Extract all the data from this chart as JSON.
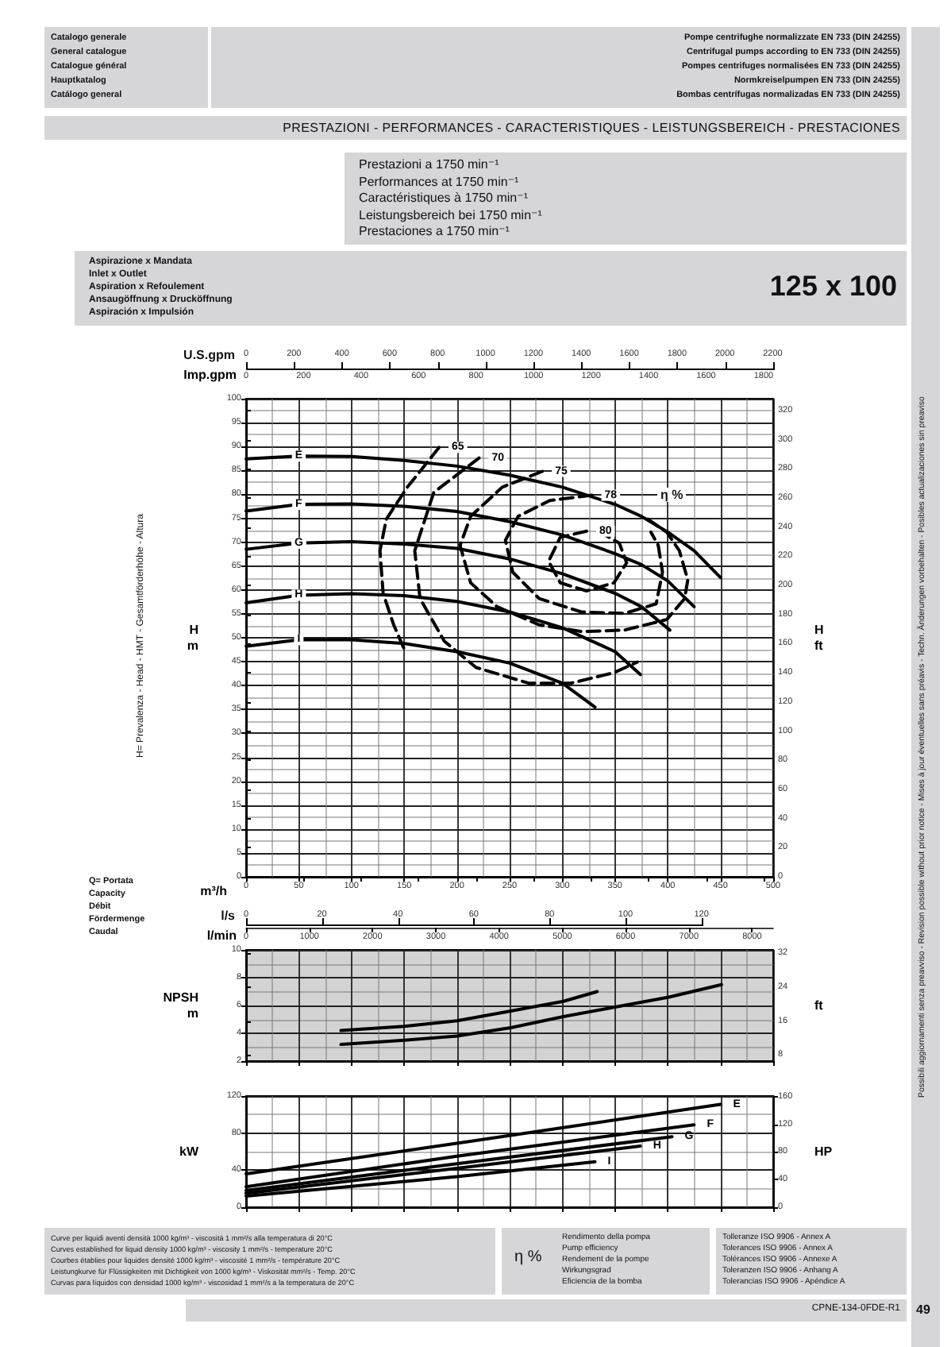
{
  "chart_data": [
    {
      "type": "line",
      "title": "PRESTAZIONI - PERFORMANCES - CARACTERISTIQUES - LEISTUNGSBEREICH - PRESTACIONES",
      "subtitle": "Prestazioni a 1750 min⁻¹\nPerformances at 1750 min⁻¹\nCaractéristiques à 1750 min⁻¹\nLeistungsbereich bei 1750 min⁻¹\nPrestaciones a 1750 min⁻¹",
      "xlabel": "m³/h",
      "ylabel": "H\nm",
      "y2label": "H\nft",
      "x2label": "Imp.gpm",
      "xlim": [
        0,
        500
      ],
      "xticks": [
        0,
        50,
        100,
        150,
        200,
        250,
        300,
        350,
        400,
        450,
        500
      ],
      "x2lim": [
        0,
        1833.3
      ],
      "x2ticks": [
        0,
        200,
        400,
        600,
        800,
        1000,
        1200,
        1400,
        1600,
        1800
      ],
      "ylim": [
        0,
        100
      ],
      "yticks": [
        0,
        5,
        10,
        15,
        20,
        25,
        30,
        35,
        40,
        45,
        50,
        55,
        60,
        65,
        70,
        75,
        80,
        85,
        90,
        95,
        100
      ],
      "y2lim": [
        0,
        328.1
      ],
      "y2ticks": [
        0,
        20,
        40,
        60,
        80,
        100,
        120,
        140,
        160,
        180,
        200,
        220,
        240,
        260,
        280,
        300,
        320
      ],
      "grid": true,
      "marker": "none",
      "line_style": "solid",
      "series": [
        {
          "name": "E",
          "color": "#000000",
          "x": [
            0,
            50,
            100,
            150,
            200,
            250,
            300,
            350,
            375,
            400,
            425,
            450
          ],
          "values": [
            87.4,
            88,
            87.9,
            87.1,
            85.9,
            84,
            81.5,
            77.9,
            75.4,
            72.1,
            68.2,
            62.6
          ]
        },
        {
          "name": "F",
          "color": "#000000",
          "x": [
            0,
            50,
            100,
            150,
            200,
            250,
            300,
            350,
            375,
            400,
            425
          ],
          "values": [
            76.5,
            77.9,
            78,
            77.5,
            76.4,
            74.3,
            71.5,
            67.6,
            65.3,
            61.9,
            56.5
          ]
        },
        {
          "name": "G",
          "color": "#000000",
          "x": [
            0,
            50,
            100,
            150,
            200,
            250,
            300,
            350,
            375,
            402
          ],
          "values": [
            68.5,
            69.8,
            70.1,
            69.6,
            68.7,
            66.5,
            63.4,
            59.3,
            56.5,
            51.6
          ]
        },
        {
          "name": "H",
          "color": "#000000",
          "x": [
            0,
            50,
            100,
            150,
            200,
            250,
            300,
            350,
            374
          ],
          "values": [
            57.3,
            58.9,
            59.2,
            58.8,
            57.6,
            55.4,
            52.1,
            47.1,
            42.3
          ]
        },
        {
          "name": "I",
          "color": "#000000",
          "x": [
            0,
            50,
            100,
            150,
            200,
            250,
            300,
            331
          ],
          "values": [
            48.2,
            49.6,
            49.6,
            48.8,
            47.1,
            44.7,
            40.5,
            35.5
          ]
        },
        {
          "name": "65",
          "color": "#000000",
          "line_style": "dashed",
          "x": [
            183,
            153,
            133,
            127,
            130,
            140,
            151
          ],
          "values": [
            89.8,
            81.5,
            74.8,
            68.2,
            59.3,
            52.7,
            47.1
          ]
        },
        {
          "name": "70",
          "color": "#000000",
          "line_style": "dashed",
          "x": [
            221,
            178,
            160,
            165,
            188,
            218,
            268,
            308,
            349,
            371
          ],
          "values": [
            87.6,
            80.4,
            68.2,
            58.2,
            49.3,
            43.8,
            40.5,
            40.5,
            42.7,
            44.9
          ]
        },
        {
          "name": "75",
          "color": "#000000",
          "line_style": "dashed",
          "x": [
            281,
            243,
            213,
            203,
            213,
            238,
            278,
            318,
            359,
            399,
            416,
            419,
            411,
            399,
            379
          ],
          "values": [
            84.8,
            81.5,
            75.4,
            69.3,
            61.5,
            56.5,
            52.7,
            51.3,
            51.6,
            53.8,
            58.2,
            62.1,
            68.2,
            72.1,
            75.1
          ]
        },
        {
          "name": "78",
          "color": "#000000",
          "line_style": "dashed",
          "x": [
            328,
            288,
            258,
            246,
            253,
            278,
            318,
            359,
            389,
            395,
            391,
            384
          ],
          "values": [
            79.8,
            78.7,
            75.4,
            70.4,
            63.7,
            58.2,
            55.4,
            55.1,
            57.1,
            63.7,
            69.3,
            72.1
          ]
        },
        {
          "name": "80",
          "color": "#000000",
          "line_style": "dashed",
          "x": [
            323,
            298,
            287,
            298,
            323,
            349,
            361,
            354,
            338
          ],
          "values": [
            72.3,
            71,
            66,
            61.5,
            59.8,
            61.5,
            65.7,
            69.8,
            71.8
          ]
        }
      ],
      "annotations": [
        "Catalogo generale\nGeneral catalogue\nCatalogue général\nHauptkatalog\nCatálogo general",
        "Pompe centrifughe normalizzate EN 733 (DIN 24255)\nCentrifugal pumps according to EN 733 (DIN 24255)\nPompes centrifuges normalisées EN 733 (DIN 24255)\nNormkreiselpumpen EN 733 (DIN 24255)\nBombas centrífugas normalizadas EN 733 (DIN 24255)",
        "Aspirazione x Mandata\nInlet x Outlet\nAspiration x Refoulement\nAnsaugöffnung x Drucköffnung\nAspiración x Impulsión",
        "125 x 100",
        "H= Prevalenza - Head - HMT - Gesamtförderhöhe - Altura",
        "Q= Portata\nCapacity\nDébit\nFördermenge\nCaudal",
        "Curve per liquidi aventi densità 1000 kg/m³ - viscosità 1 mm²/s alla temperatura di 20°C\nCurves established for liquid density 1000 kg/m³ - viscosity 1 mm²/s - temperature 20°C\nCourbes établies pour liquides densité 1000 kg/m³ - viscosité 1 mm²/s - température 20°C\nLeistungkurve für Flüssigkeiten mit Dichtigkeit von 1000 kg/m³ - Viskosität mm²/s - Temp. 20°C\nCurvas para líquidos con densidad 1000 kg/m³ - viscosidad 1 mm²/s a la temperatura de 20°C",
        "η %",
        "Rendimento della pompa\nPump efficiency\nRendement de la pompe\nWirkungsgrad\nEficiencia de la bomba",
        "Tolleranze ISO 9906 - Annex A\nTolerances ISO 9906 - Annex A\nTolérances ISO 9906 - Annexe A\nToleranzen ISO 9906 - Anhang A\nTolerancias ISO 9906 - Apéndice A",
        "CPNE-134-0FDE-R1",
        "49",
        "Possibili aggiornamenti senza preavviso - Revision possible without prior notice - Mises à jour éventuelles sans préavis - Techn. Änderungen vorbehalten - Posibles actualizaciones sin preaviso",
        "η %",
        "U.S.gpm",
        "0",
        "200",
        "400",
        "600",
        "800",
        "1000",
        "1200",
        "1400",
        "1600",
        "1800",
        "2000",
        "2200",
        "l/s",
        "0",
        "20",
        "40",
        "60",
        "80",
        "100",
        "120"
      ]
    },
    {
      "type": "line",
      "ylabel": "NPSH\nm",
      "y2label": "ft",
      "x2label": "l/min",
      "xlim": [
        0,
        500
      ],
      "xticks": [
        0,
        50,
        100,
        150,
        200,
        250,
        300,
        350,
        400,
        450,
        500
      ],
      "x2lim": [
        0,
        8333
      ],
      "x2ticks": [
        0,
        1000,
        2000,
        3000,
        4000,
        5000,
        6000,
        7000,
        8000
      ],
      "ylim": [
        2,
        10
      ],
      "yticks": [
        2,
        4,
        6,
        8,
        10
      ],
      "y2lim": [
        6.56,
        32.81
      ],
      "y2ticks": [
        8,
        16,
        24,
        32
      ],
      "tick_labels": "y",
      "grid": true,
      "marker": "none",
      "line_style": "solid",
      "series": [
        {
          "color": "#000000",
          "x": [
            90,
            150,
            200,
            251,
            301,
            333
          ],
          "values": [
            4.2,
            4.5,
            4.9,
            5.6,
            6.3,
            7
          ]
        },
        {
          "color": "#000000",
          "x": [
            90,
            150,
            200,
            251,
            301,
            351,
            401,
            451
          ],
          "values": [
            3.2,
            3.5,
            3.8,
            4.4,
            5.2,
            5.9,
            6.6,
            7.5
          ]
        }
      ]
    },
    {
      "type": "line",
      "ylabel": "kW",
      "y2label": "HP",
      "xlim": [
        0,
        500
      ],
      "xticks": [
        0,
        50,
        100,
        150,
        200,
        250,
        300,
        350,
        400,
        450,
        500
      ],
      "ylim": [
        0,
        120
      ],
      "yticks": [
        0,
        40,
        80,
        120
      ],
      "y2lim": [
        0,
        160.9
      ],
      "y2ticks": [
        0,
        40,
        80,
        120,
        160
      ],
      "tick_labels": "y",
      "grid": true,
      "marker": "none",
      "line_style": "solid",
      "series": [
        {
          "name": "E",
          "color": "#000000",
          "x": [
            0,
            200,
            450
          ],
          "values": [
            36,
            69,
            111
          ]
        },
        {
          "name": "F",
          "color": "#000000",
          "x": [
            0,
            200,
            425
          ],
          "values": [
            22,
            55,
            89
          ]
        },
        {
          "name": "G",
          "color": "#000000",
          "x": [
            0,
            200,
            404
          ],
          "values": [
            18,
            47,
            76
          ]
        },
        {
          "name": "H",
          "color": "#000000",
          "x": [
            0,
            200,
            374
          ],
          "values": [
            15,
            42,
            66
          ]
        },
        {
          "name": "I",
          "color": "#000000",
          "x": [
            0,
            200,
            331
          ],
          "values": [
            12,
            33,
            49
          ]
        }
      ]
    }
  ]
}
